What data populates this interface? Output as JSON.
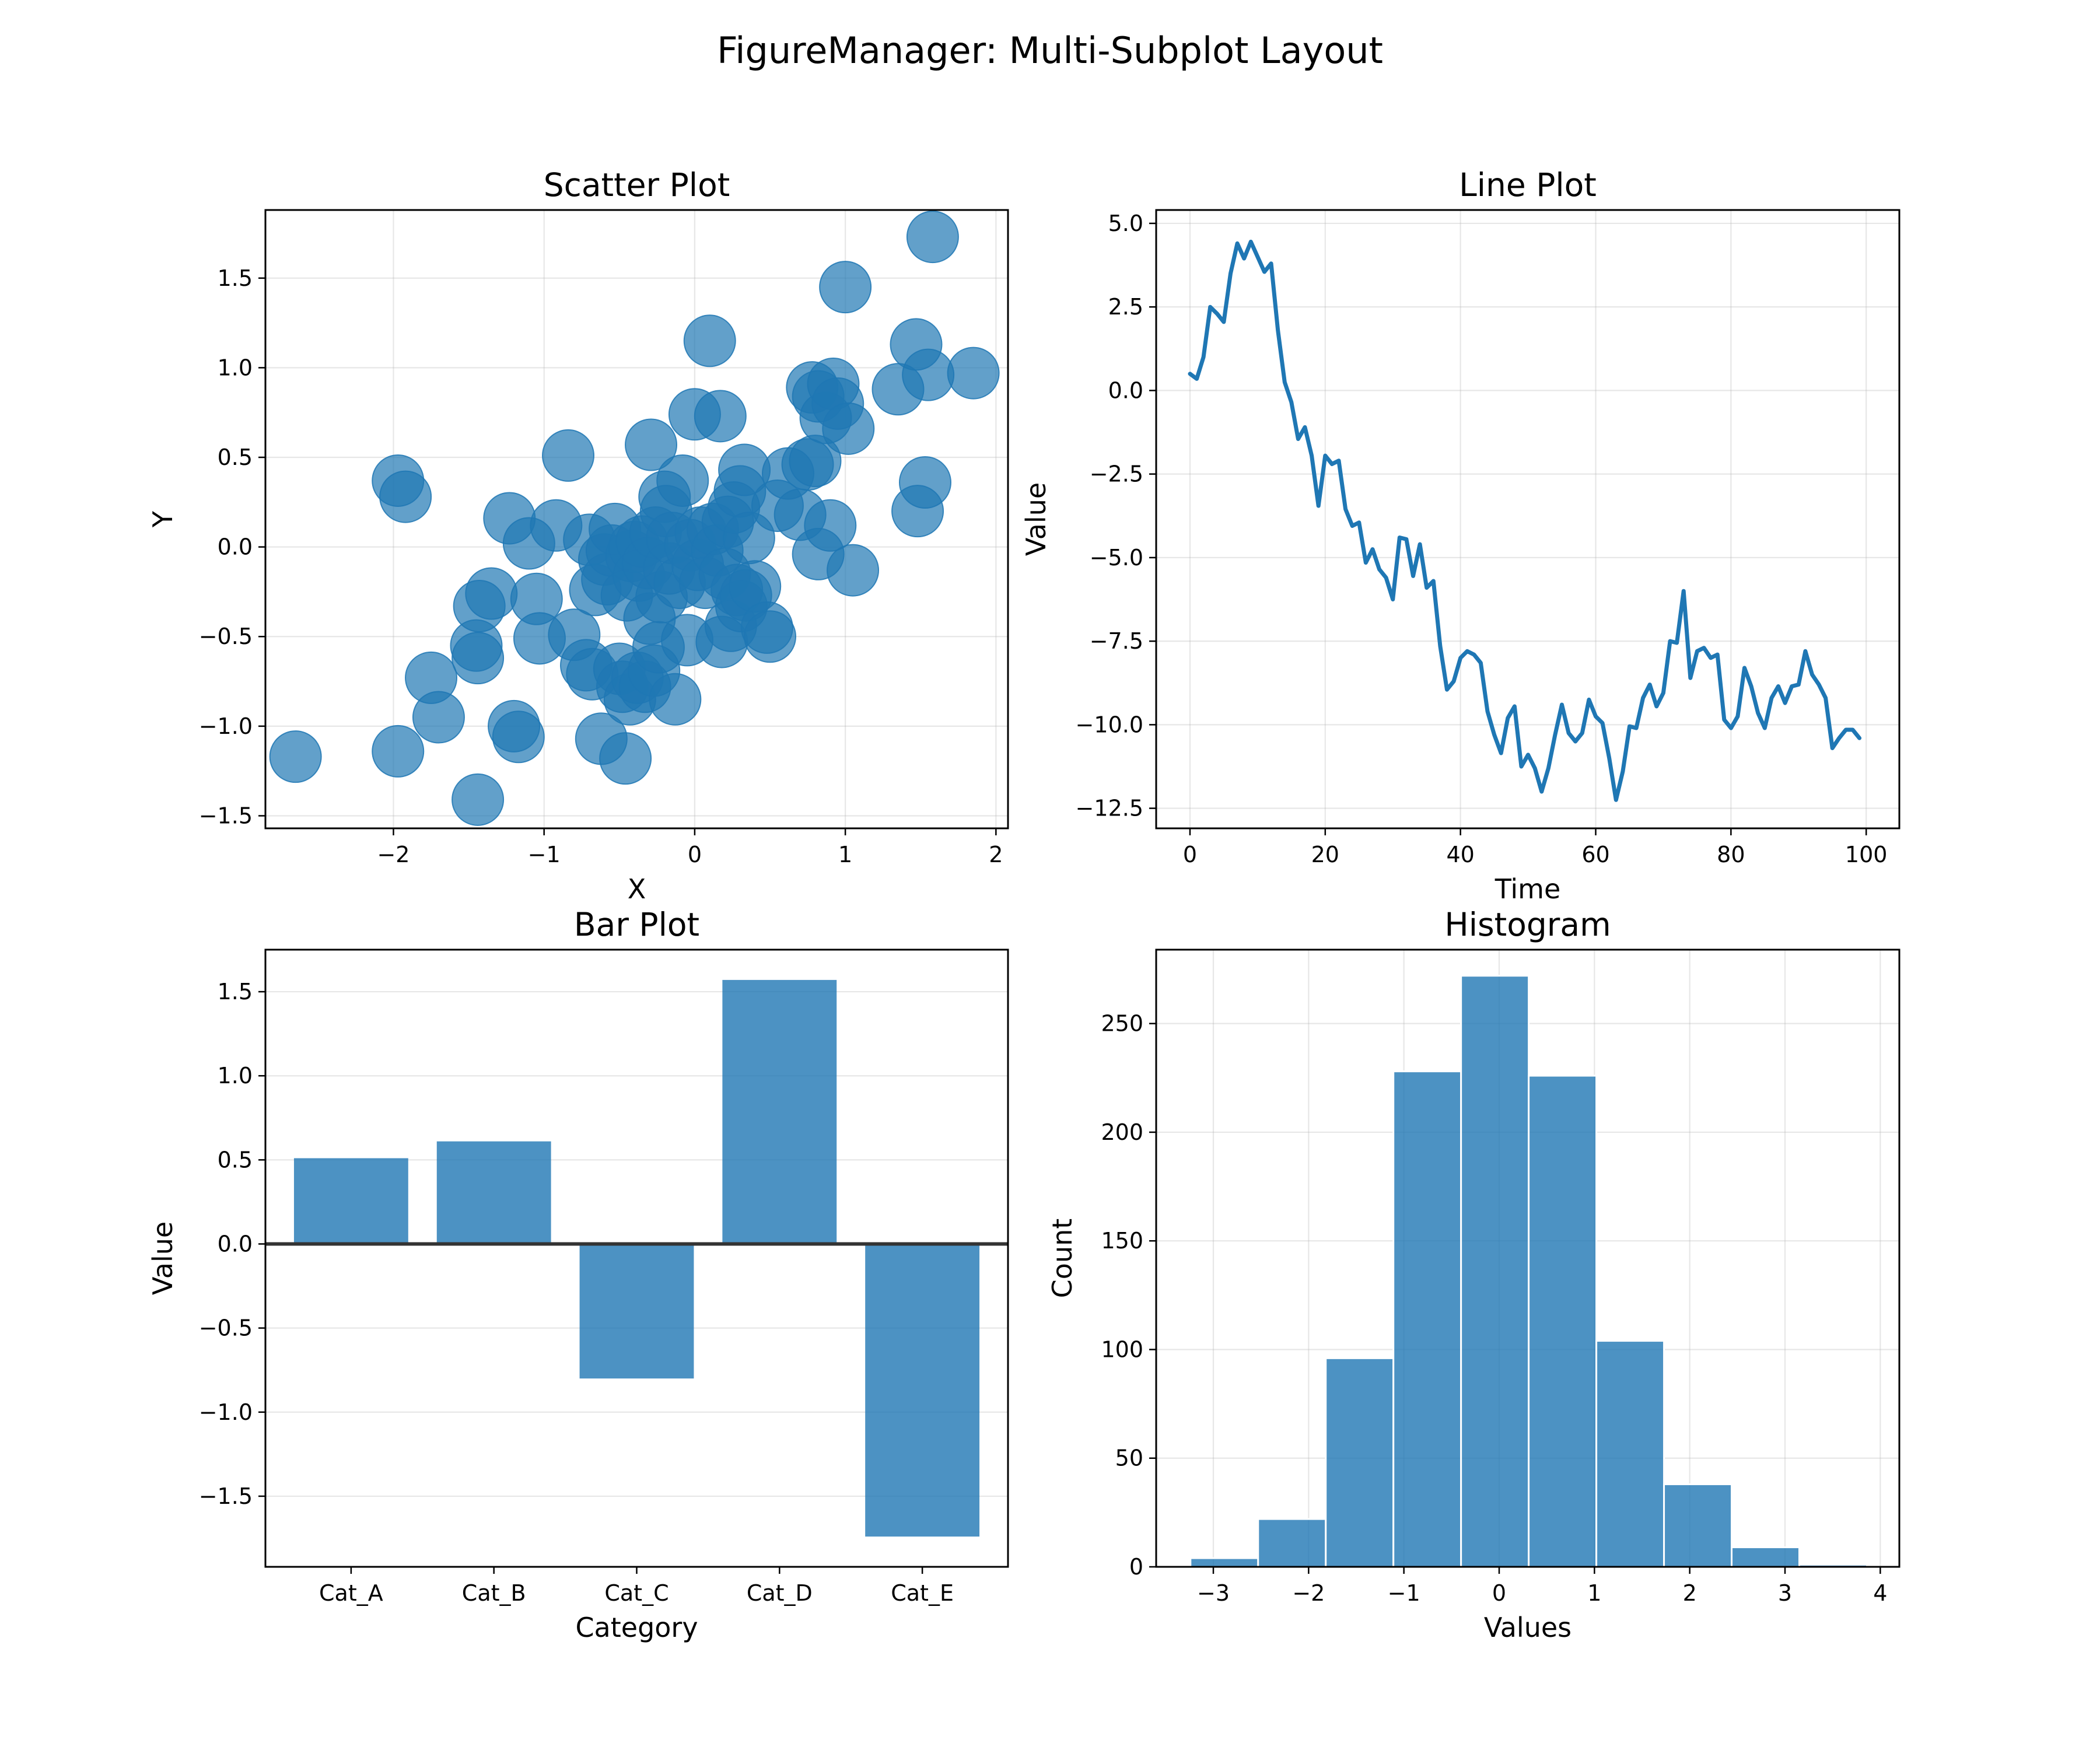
{
  "figure": {
    "suptitle": "FigureManager: Multi-Subplot Layout"
  },
  "colors": {
    "series": "#1f77b4",
    "axes": "#000000",
    "grid": "#b0b0b0",
    "zero_line": "#333333"
  },
  "chart_data": [
    {
      "type": "scatter",
      "title": "Scatter Plot",
      "xlabel": "X",
      "ylabel": "Y",
      "xlim": [
        -2.85,
        2.08
      ],
      "ylim": [
        -1.57,
        1.88
      ],
      "xticks": [
        -2,
        -1,
        0,
        1,
        2
      ],
      "yticks": [
        -1.5,
        -1.0,
        -0.5,
        0.0,
        0.5,
        1.0,
        1.5
      ],
      "grid": true,
      "marker_alpha": 0.7,
      "points": [
        {
          "x": -2.65,
          "y": -1.17
        },
        {
          "x": -1.97,
          "y": 0.37
        },
        {
          "x": -1.92,
          "y": 0.28
        },
        {
          "x": -1.97,
          "y": -1.14
        },
        {
          "x": -1.75,
          "y": -0.73
        },
        {
          "x": -1.7,
          "y": -0.95
        },
        {
          "x": -1.45,
          "y": -0.55
        },
        {
          "x": -1.44,
          "y": -0.62
        },
        {
          "x": -1.43,
          "y": -0.33
        },
        {
          "x": -1.44,
          "y": -1.41
        },
        {
          "x": -1.35,
          "y": -0.26
        },
        {
          "x": -1.23,
          "y": 0.16
        },
        {
          "x": -1.2,
          "y": -1.0
        },
        {
          "x": -1.17,
          "y": -1.06
        },
        {
          "x": -1.1,
          "y": 0.02
        },
        {
          "x": -1.05,
          "y": -0.29
        },
        {
          "x": -1.03,
          "y": -0.51
        },
        {
          "x": -0.92,
          "y": 0.12
        },
        {
          "x": -0.84,
          "y": 0.51
        },
        {
          "x": -0.8,
          "y": -0.49
        },
        {
          "x": -0.7,
          "y": 0.04
        },
        {
          "x": -0.72,
          "y": -0.66
        },
        {
          "x": -0.68,
          "y": -0.71
        },
        {
          "x": -0.66,
          "y": -0.24
        },
        {
          "x": -0.62,
          "y": -1.07
        },
        {
          "x": -0.6,
          "y": -0.07
        },
        {
          "x": -0.58,
          "y": -0.18
        },
        {
          "x": -0.55,
          "y": -0.02
        },
        {
          "x": -0.53,
          "y": 0.1
        },
        {
          "x": -0.5,
          "y": -0.68
        },
        {
          "x": -0.48,
          "y": -0.78
        },
        {
          "x": -0.46,
          "y": -1.18
        },
        {
          "x": -0.45,
          "y": -0.27
        },
        {
          "x": -0.43,
          "y": -0.85
        },
        {
          "x": -0.42,
          "y": -0.05
        },
        {
          "x": -0.4,
          "y": 0.0
        },
        {
          "x": -0.38,
          "y": -0.73
        },
        {
          "x": -0.37,
          "y": -0.16
        },
        {
          "x": -0.35,
          "y": 0.03
        },
        {
          "x": -0.33,
          "y": -0.78
        },
        {
          "x": -0.31,
          "y": -0.09
        },
        {
          "x": -0.3,
          "y": -0.4
        },
        {
          "x": -0.29,
          "y": 0.57
        },
        {
          "x": -0.27,
          "y": -0.69
        },
        {
          "x": -0.26,
          "y": 0.08
        },
        {
          "x": -0.24,
          "y": -0.56
        },
        {
          "x": -0.22,
          "y": -0.28
        },
        {
          "x": -0.2,
          "y": 0.28
        },
        {
          "x": -0.19,
          "y": 0.2
        },
        {
          "x": -0.17,
          "y": -0.12
        },
        {
          "x": -0.15,
          "y": 0.05
        },
        {
          "x": -0.13,
          "y": -0.85
        },
        {
          "x": -0.1,
          "y": -0.2
        },
        {
          "x": -0.08,
          "y": 0.37
        },
        {
          "x": -0.05,
          "y": -0.52
        },
        {
          "x": -0.03,
          "y": 0.01
        },
        {
          "x": 0.0,
          "y": 0.74
        },
        {
          "x": 0.02,
          "y": -0.1
        },
        {
          "x": 0.04,
          "y": 0.08
        },
        {
          "x": 0.07,
          "y": -0.2
        },
        {
          "x": 0.1,
          "y": 1.15
        },
        {
          "x": 0.12,
          "y": 0.1
        },
        {
          "x": 0.15,
          "y": -0.02
        },
        {
          "x": 0.17,
          "y": 0.73
        },
        {
          "x": 0.18,
          "y": -0.53
        },
        {
          "x": 0.2,
          "y": -0.15
        },
        {
          "x": 0.22,
          "y": 0.14
        },
        {
          "x": 0.24,
          "y": -0.44
        },
        {
          "x": 0.26,
          "y": 0.22
        },
        {
          "x": 0.28,
          "y": -0.24
        },
        {
          "x": 0.3,
          "y": 0.31
        },
        {
          "x": 0.31,
          "y": -0.33
        },
        {
          "x": 0.33,
          "y": 0.43
        },
        {
          "x": 0.34,
          "y": -0.27
        },
        {
          "x": 0.36,
          "y": 0.05
        },
        {
          "x": 0.4,
          "y": -0.22
        },
        {
          "x": 0.48,
          "y": -0.45
        },
        {
          "x": 0.5,
          "y": -0.5
        },
        {
          "x": 0.55,
          "y": 0.23
        },
        {
          "x": 0.62,
          "y": 0.41
        },
        {
          "x": 0.7,
          "y": 0.18
        },
        {
          "x": 0.75,
          "y": 0.46
        },
        {
          "x": 0.8,
          "y": 0.48
        },
        {
          "x": 0.82,
          "y": -0.04
        },
        {
          "x": 0.78,
          "y": 0.89
        },
        {
          "x": 0.82,
          "y": 0.84
        },
        {
          "x": 0.87,
          "y": 0.72
        },
        {
          "x": 0.9,
          "y": 0.12
        },
        {
          "x": 0.92,
          "y": 0.91
        },
        {
          "x": 0.95,
          "y": 0.8
        },
        {
          "x": 1.0,
          "y": 1.45
        },
        {
          "x": 1.02,
          "y": 0.66
        },
        {
          "x": 1.05,
          "y": -0.13
        },
        {
          "x": 1.35,
          "y": 0.88
        },
        {
          "x": 1.47,
          "y": 1.13
        },
        {
          "x": 1.48,
          "y": 0.2
        },
        {
          "x": 1.53,
          "y": 0.36
        },
        {
          "x": 1.55,
          "y": 0.96
        },
        {
          "x": 1.58,
          "y": 1.73
        },
        {
          "x": 1.85,
          "y": 0.97
        }
      ]
    },
    {
      "type": "line",
      "title": "Line Plot",
      "xlabel": "Time",
      "ylabel": "Value",
      "xlim": [
        -5,
        104.9
      ],
      "ylim": [
        -13.1,
        5.4
      ],
      "xticks": [
        0,
        20,
        40,
        60,
        80,
        100
      ],
      "yticks": [
        5.0,
        2.5,
        0.0,
        -2.5,
        -5.0,
        -7.5,
        -10.0,
        -12.5
      ],
      "grid": true,
      "x": [
        0,
        1,
        2,
        3,
        4,
        5,
        6,
        7,
        8,
        9,
        10,
        11,
        12,
        13,
        14,
        15,
        16,
        17,
        18,
        19,
        20,
        21,
        22,
        23,
        24,
        25,
        26,
        27,
        28,
        29,
        30,
        31,
        32,
        33,
        34,
        35,
        36,
        37,
        38,
        39,
        40,
        41,
        42,
        43,
        44,
        45,
        46,
        47,
        48,
        49,
        50,
        51,
        52,
        53,
        54,
        55,
        56,
        57,
        58,
        59,
        60,
        61,
        62,
        63,
        64,
        65,
        66,
        67,
        68,
        69,
        70,
        71,
        72,
        73,
        74,
        75,
        76,
        77,
        78,
        79,
        80,
        81,
        82,
        83,
        84,
        85,
        86,
        87,
        88,
        89,
        90,
        91,
        92,
        93,
        94,
        95,
        96,
        97,
        98,
        99
      ],
      "y": [
        0.5,
        0.35,
        1.0,
        2.5,
        2.3,
        2.05,
        3.5,
        4.4,
        3.95,
        4.45,
        4.0,
        3.55,
        3.8,
        1.8,
        0.25,
        -0.35,
        -1.45,
        -1.1,
        -1.95,
        -3.45,
        -1.95,
        -2.2,
        -2.1,
        -3.55,
        -4.05,
        -3.95,
        -5.15,
        -4.75,
        -5.35,
        -5.6,
        -6.25,
        -4.4,
        -4.45,
        -5.55,
        -4.6,
        -5.9,
        -5.7,
        -7.65,
        -8.95,
        -8.7,
        -8.0,
        -7.8,
        -7.9,
        -8.15,
        -9.6,
        -10.3,
        -10.85,
        -9.8,
        -9.45,
        -11.25,
        -10.9,
        -11.3,
        -12.0,
        -11.3,
        -10.3,
        -9.4,
        -10.25,
        -10.5,
        -10.25,
        -9.25,
        -9.75,
        -9.95,
        -11.0,
        -12.25,
        -11.4,
        -10.05,
        -10.1,
        -9.2,
        -8.8,
        -9.45,
        -9.05,
        -7.5,
        -7.55,
        -6.0,
        -8.6,
        -7.8,
        -7.7,
        -8.0,
        -7.9,
        -9.85,
        -10.1,
        -9.75,
        -8.3,
        -8.85,
        -9.65,
        -10.1,
        -9.2,
        -8.85,
        -9.35,
        -8.85,
        -8.8,
        -7.8,
        -8.5,
        -8.8,
        -9.2,
        -10.7,
        -10.4,
        -10.15,
        -10.15,
        -10.4
      ]
    },
    {
      "type": "bar",
      "title": "Bar Plot",
      "xlabel": "Category",
      "ylabel": "Value",
      "ylim": [
        -1.92,
        1.75
      ],
      "yticks": [
        -1.5,
        -1.0,
        -0.5,
        0.0,
        0.5,
        1.0,
        1.5
      ],
      "grid": true,
      "categories": [
        "Cat_A",
        "Cat_B",
        "Cat_C",
        "Cat_D",
        "Cat_E"
      ],
      "values": [
        0.51,
        0.61,
        -0.8,
        1.57,
        -1.74
      ],
      "bar_alpha": 0.8
    },
    {
      "type": "bar",
      "subtype": "histogram",
      "title": "Histogram",
      "xlabel": "Values",
      "ylabel": "Count",
      "xlim": [
        -3.6,
        4.2
      ],
      "ylim": [
        0,
        284
      ],
      "xticks": [
        -3,
        -2,
        -1,
        0,
        1,
        2,
        3,
        4
      ],
      "yticks": [
        0,
        50,
        100,
        150,
        200,
        250
      ],
      "grid": true,
      "bin_edges": [
        -3.24,
        -2.53,
        -1.82,
        -1.11,
        -0.4,
        0.31,
        1.02,
        1.73,
        2.44,
        3.15,
        3.86
      ],
      "counts": [
        4,
        22,
        96,
        228,
        272,
        226,
        104,
        38,
        9,
        1
      ],
      "bar_alpha": 0.8
    }
  ]
}
